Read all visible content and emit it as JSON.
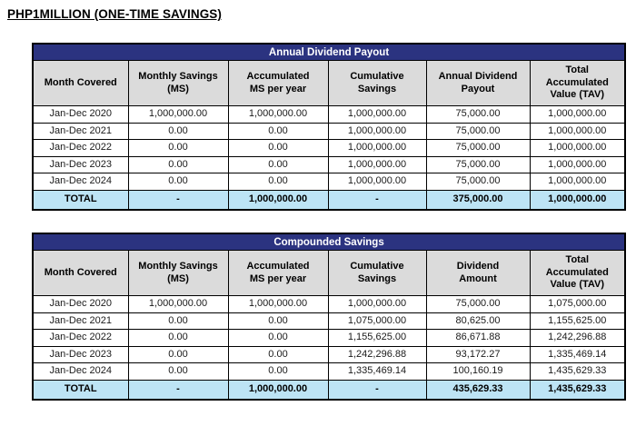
{
  "page": {
    "title": "PHP1MILLION (ONE-TIME SAVINGS)"
  },
  "colors": {
    "band_bg": "#2B3380",
    "band_text": "#FFFFFF",
    "column_header_bg": "#DBDBDB",
    "total_row_bg": "#BDE4F5",
    "border": "#000000",
    "data_text": "#1A1A1A"
  },
  "tables": [
    {
      "title": "Annual Dividend Payout",
      "columns": [
        "Month Covered",
        "Monthly Savings\n(MS)",
        "Accumulated\nMS per year",
        "Cumulative\nSavings",
        "Annual Dividend\nPayout",
        "Total\nAccumulated\nValue (TAV)"
      ],
      "rows": [
        [
          "Jan-Dec 2020",
          "1,000,000.00",
          "1,000,000.00",
          "1,000,000.00",
          "75,000.00",
          "1,000,000.00"
        ],
        [
          "Jan-Dec 2021",
          "0.00",
          "0.00",
          "1,000,000.00",
          "75,000.00",
          "1,000,000.00"
        ],
        [
          "Jan-Dec 2022",
          "0.00",
          "0.00",
          "1,000,000.00",
          "75,000.00",
          "1,000,000.00"
        ],
        [
          "Jan-Dec 2023",
          "0.00",
          "0.00",
          "1,000,000.00",
          "75,000.00",
          "1,000,000.00"
        ],
        [
          "Jan-Dec 2024",
          "0.00",
          "0.00",
          "1,000,000.00",
          "75,000.00",
          "1,000,000.00"
        ]
      ],
      "total_row": [
        "TOTAL",
        "-",
        "1,000,000.00",
        "-",
        "375,000.00",
        "1,000,000.00"
      ]
    },
    {
      "title": "Compounded Savings",
      "columns": [
        "Month Covered",
        "Monthly Savings\n(MS)",
        "Accumulated\nMS per year",
        "Cumulative\nSavings",
        "Dividend\nAmount",
        "Total\nAccumulated\nValue (TAV)"
      ],
      "rows": [
        [
          "Jan-Dec 2020",
          "1,000,000.00",
          "1,000,000.00",
          "1,000,000.00",
          "75,000.00",
          "1,075,000.00"
        ],
        [
          "Jan-Dec 2021",
          "0.00",
          "0.00",
          "1,075,000.00",
          "80,625.00",
          "1,155,625.00"
        ],
        [
          "Jan-Dec 2022",
          "0.00",
          "0.00",
          "1,155,625.00",
          "86,671.88",
          "1,242,296.88"
        ],
        [
          "Jan-Dec 2023",
          "0.00",
          "0.00",
          "1,242,296.88",
          "93,172.27",
          "1,335,469.14"
        ],
        [
          "Jan-Dec 2024",
          "0.00",
          "0.00",
          "1,335,469.14",
          "100,160.19",
          "1,435,629.33"
        ]
      ],
      "total_row": [
        "TOTAL",
        "-",
        "1,000,000.00",
        "-",
        "435,629.33",
        "1,435,629.33"
      ]
    }
  ]
}
